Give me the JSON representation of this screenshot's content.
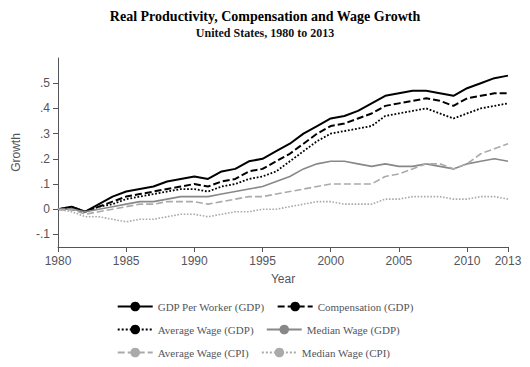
{
  "chart_data": {
    "type": "line",
    "title": "Real Productivity, Compensation and Wage Growth",
    "subtitle": "United States, 1980 to 2013",
    "xlabel": "Year",
    "ylabel": "Growth",
    "x": [
      1980,
      1981,
      1982,
      1983,
      1984,
      1985,
      1986,
      1987,
      1988,
      1989,
      1990,
      1991,
      1992,
      1993,
      1994,
      1995,
      1996,
      1997,
      1998,
      1999,
      2000,
      2001,
      2002,
      2003,
      2004,
      2005,
      2006,
      2007,
      2008,
      2009,
      2010,
      2011,
      2012,
      2013
    ],
    "series": [
      {
        "name": "GDP Per Worker (GDP)",
        "color": "#000000",
        "line_style": "solid",
        "values": [
          0.0,
          0.01,
          -0.01,
          0.02,
          0.05,
          0.07,
          0.08,
          0.09,
          0.11,
          0.12,
          0.13,
          0.12,
          0.15,
          0.16,
          0.19,
          0.2,
          0.23,
          0.26,
          0.3,
          0.33,
          0.36,
          0.37,
          0.39,
          0.42,
          0.45,
          0.46,
          0.47,
          0.47,
          0.46,
          0.45,
          0.48,
          0.5,
          0.52,
          0.53
        ]
      },
      {
        "name": "Compensation (GDP)",
        "color": "#000000",
        "line_style": "dashed",
        "values": [
          0.0,
          0.0,
          -0.01,
          0.01,
          0.03,
          0.05,
          0.06,
          0.07,
          0.08,
          0.09,
          0.1,
          0.09,
          0.11,
          0.12,
          0.15,
          0.16,
          0.19,
          0.22,
          0.26,
          0.3,
          0.33,
          0.34,
          0.36,
          0.38,
          0.41,
          0.42,
          0.43,
          0.44,
          0.43,
          0.41,
          0.44,
          0.45,
          0.46,
          0.46
        ]
      },
      {
        "name": "Average Wage (GDP)",
        "color": "#000000",
        "line_style": "dotted",
        "values": [
          0.0,
          0.01,
          -0.01,
          0.01,
          0.02,
          0.04,
          0.05,
          0.06,
          0.07,
          0.08,
          0.08,
          0.07,
          0.09,
          0.1,
          0.12,
          0.13,
          0.15,
          0.19,
          0.23,
          0.27,
          0.3,
          0.31,
          0.32,
          0.33,
          0.37,
          0.38,
          0.39,
          0.4,
          0.38,
          0.36,
          0.38,
          0.4,
          0.41,
          0.42
        ]
      },
      {
        "name": "Median Wage (GDP)",
        "color": "#888888",
        "line_style": "solid",
        "values": [
          0.0,
          0.0,
          -0.01,
          0.0,
          0.01,
          0.02,
          0.03,
          0.03,
          0.04,
          0.05,
          0.05,
          0.05,
          0.06,
          0.07,
          0.08,
          0.09,
          0.11,
          0.13,
          0.16,
          0.18,
          0.19,
          0.19,
          0.18,
          0.17,
          0.18,
          0.17,
          0.17,
          0.18,
          0.17,
          0.16,
          0.18,
          0.19,
          0.2,
          0.19
        ]
      },
      {
        "name": "Average Wage (CPI)",
        "color": "#aaaaaa",
        "line_style": "dashed",
        "values": [
          0.0,
          0.0,
          -0.02,
          -0.01,
          0.0,
          0.01,
          0.02,
          0.02,
          0.03,
          0.03,
          0.03,
          0.02,
          0.03,
          0.04,
          0.05,
          0.05,
          0.06,
          0.07,
          0.08,
          0.09,
          0.1,
          0.1,
          0.1,
          0.1,
          0.13,
          0.14,
          0.16,
          0.18,
          0.18,
          0.16,
          0.18,
          0.22,
          0.24,
          0.26
        ]
      },
      {
        "name": "Median Wage (CPI)",
        "color": "#aaaaaa",
        "line_style": "dotted",
        "values": [
          0.0,
          -0.01,
          -0.03,
          -0.03,
          -0.04,
          -0.05,
          -0.04,
          -0.04,
          -0.03,
          -0.02,
          -0.02,
          -0.03,
          -0.02,
          -0.01,
          -0.01,
          0.0,
          0.0,
          0.01,
          0.02,
          0.03,
          0.03,
          0.02,
          0.02,
          0.02,
          0.04,
          0.04,
          0.05,
          0.05,
          0.05,
          0.04,
          0.04,
          0.05,
          0.05,
          0.04
        ]
      }
    ],
    "xlim": [
      1980,
      2013
    ],
    "ylim": [
      -0.15,
      0.6
    ],
    "xticks": [
      1980,
      1985,
      1990,
      1995,
      2000,
      2005,
      2010,
      2013
    ],
    "yticks": [
      {
        "value": -0.1,
        "label": "-.1"
      },
      0,
      {
        "value": 0.1,
        "label": ".1"
      },
      {
        "value": 0.2,
        "label": ".2"
      },
      {
        "value": 0.3,
        "label": ".3"
      },
      {
        "value": 0.4,
        "label": ".4"
      },
      {
        "value": 0.5,
        "label": ".5"
      }
    ],
    "grid": false,
    "legend": "bottom"
  }
}
